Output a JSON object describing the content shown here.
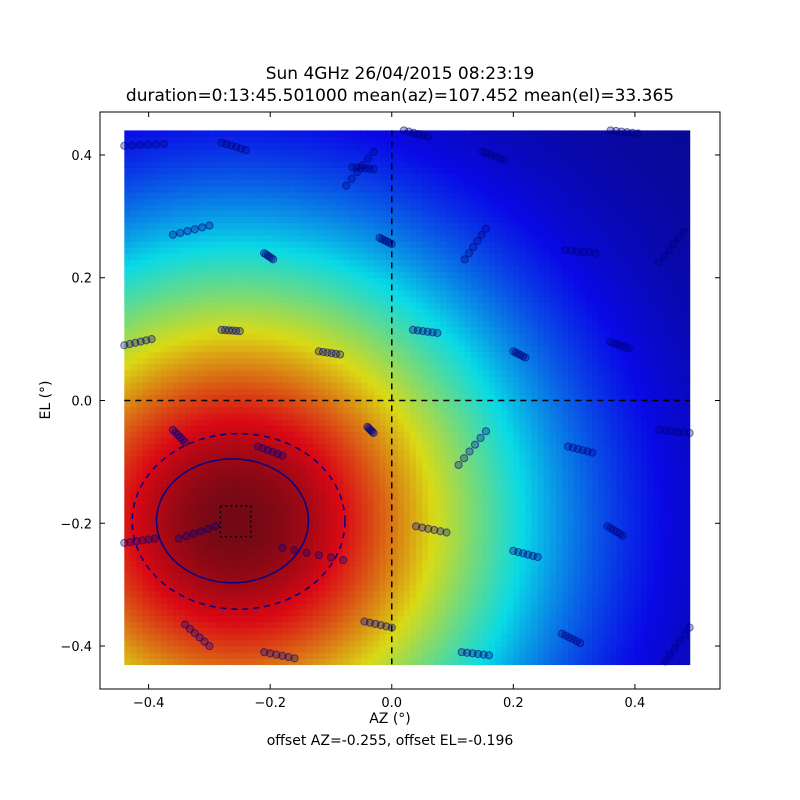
{
  "title_line_1": "Sun 4GHz 26/04/2015 08:23:19",
  "title_line_2": "duration=0:13:45.501000 mean(az)=107.452 mean(el)=33.365",
  "xlabel": "AZ (°)",
  "ylabel": "EL (°)",
  "footer": "offset AZ=-0.255, offset EL=-0.196",
  "chart_data": {
    "type": "heatmap",
    "title": "Sun 4GHz 26/04/2015 08:23:19",
    "subtitle": "duration=0:13:45.501000 mean(az)=107.452 mean(el)=33.365",
    "xlabel": "AZ (°)",
    "ylabel": "EL (°)",
    "xlim": [
      -0.48,
      0.54
    ],
    "ylim": [
      -0.47,
      0.47
    ],
    "heatmap_extent": {
      "x": [
        -0.44,
        0.49
      ],
      "y": [
        -0.43,
        0.44
      ]
    },
    "x_ticks": [
      -0.4,
      -0.2,
      0.0,
      0.2,
      0.4
    ],
    "y_ticks": [
      -0.4,
      -0.2,
      0.0,
      0.2,
      0.4
    ],
    "x_tick_labels": [
      "−0.4",
      "−0.2",
      "0.0",
      "0.2",
      "0.4"
    ],
    "y_tick_labels": [
      "−0.4",
      "−0.2",
      "0.0",
      "0.2",
      "0.4"
    ],
    "colormap": "jet",
    "peak": {
      "az": -0.255,
      "el": -0.196
    },
    "reference_lines": {
      "az": 0.0,
      "el": 0.0
    },
    "contours": [
      {
        "style": "solid",
        "center": [
          -0.262,
          -0.196
        ],
        "radius": [
          0.125,
          0.101
        ]
      },
      {
        "style": "dashed",
        "center": [
          -0.252,
          -0.197
        ],
        "radius": [
          0.175,
          0.143
        ]
      }
    ],
    "peak_box": {
      "az": [
        -0.282,
        -0.232
      ],
      "el": [
        -0.222,
        -0.172
      ]
    },
    "scan_segments": [
      {
        "az": [
          -0.44,
          -0.375
        ],
        "el": [
          0.415,
          0.418
        ]
      },
      {
        "az": [
          -0.28,
          -0.24
        ],
        "el": [
          0.42,
          0.408
        ]
      },
      {
        "az": [
          -0.065,
          -0.03
        ],
        "el": [
          0.38,
          0.377
        ]
      },
      {
        "az": [
          0.02,
          0.06
        ],
        "el": [
          0.44,
          0.43
        ]
      },
      {
        "az": [
          0.15,
          0.185
        ],
        "el": [
          0.405,
          0.392
        ]
      },
      {
        "az": [
          0.36,
          0.405
        ],
        "el": [
          0.44,
          0.435
        ]
      },
      {
        "az": [
          -0.02,
          0.0
        ],
        "el": [
          0.265,
          0.255
        ]
      },
      {
        "az": [
          -0.075,
          -0.03
        ],
        "el": [
          0.35,
          0.405
        ]
      },
      {
        "az": [
          -0.36,
          -0.3
        ],
        "el": [
          0.27,
          0.285
        ]
      },
      {
        "az": [
          -0.21,
          -0.195
        ],
        "el": [
          0.24,
          0.23
        ]
      },
      {
        "az": [
          0.12,
          0.155
        ],
        "el": [
          0.23,
          0.28
        ]
      },
      {
        "az": [
          0.285,
          0.335
        ],
        "el": [
          0.245,
          0.24
        ]
      },
      {
        "az": [
          0.44,
          0.48
        ],
        "el": [
          0.225,
          0.275
        ]
      },
      {
        "az": [
          -0.44,
          -0.395
        ],
        "el": [
          0.09,
          0.1
        ]
      },
      {
        "az": [
          -0.28,
          -0.25
        ],
        "el": [
          0.115,
          0.113
        ]
      },
      {
        "az": [
          -0.12,
          -0.085
        ],
        "el": [
          0.08,
          0.075
        ]
      },
      {
        "az": [
          0.035,
          0.075
        ],
        "el": [
          0.115,
          0.11
        ]
      },
      {
        "az": [
          0.2,
          0.22
        ],
        "el": [
          0.08,
          0.07
        ]
      },
      {
        "az": [
          0.36,
          0.39
        ],
        "el": [
          0.095,
          0.085
        ]
      },
      {
        "az": [
          -0.35,
          -0.29
        ],
        "el": [
          -0.225,
          -0.205
        ]
      },
      {
        "az": [
          -0.36,
          -0.34
        ],
        "el": [
          -0.048,
          -0.068
        ]
      },
      {
        "az": [
          -0.22,
          -0.18
        ],
        "el": [
          -0.075,
          -0.09
        ]
      },
      {
        "az": [
          -0.04,
          -0.03
        ],
        "el": [
          -0.043,
          -0.053
        ]
      },
      {
        "az": [
          0.11,
          0.155
        ],
        "el": [
          -0.105,
          -0.05
        ]
      },
      {
        "az": [
          0.29,
          0.33
        ],
        "el": [
          -0.075,
          -0.085
        ]
      },
      {
        "az": [
          0.44,
          0.49
        ],
        "el": [
          -0.048,
          -0.053
        ]
      },
      {
        "az": [
          -0.44,
          -0.39
        ],
        "el": [
          -0.232,
          -0.225
        ]
      },
      {
        "az": [
          -0.18,
          -0.08
        ],
        "el": [
          -0.24,
          -0.26
        ]
      },
      {
        "az": [
          0.04,
          0.09
        ],
        "el": [
          -0.205,
          -0.215
        ]
      },
      {
        "az": [
          0.2,
          0.24
        ],
        "el": [
          -0.245,
          -0.255
        ]
      },
      {
        "az": [
          0.355,
          0.38
        ],
        "el": [
          -0.205,
          -0.22
        ]
      },
      {
        "az": [
          -0.34,
          -0.3
        ],
        "el": [
          -0.365,
          -0.4
        ]
      },
      {
        "az": [
          -0.21,
          -0.16
        ],
        "el": [
          -0.41,
          -0.42
        ]
      },
      {
        "az": [
          -0.045,
          0.0
        ],
        "el": [
          -0.36,
          -0.37
        ]
      },
      {
        "az": [
          0.115,
          0.16
        ],
        "el": [
          -0.41,
          -0.415
        ]
      },
      {
        "az": [
          0.28,
          0.31
        ],
        "el": [
          -0.38,
          -0.395
        ]
      },
      {
        "az": [
          0.45,
          0.49
        ],
        "el": [
          -0.425,
          -0.37
        ]
      }
    ]
  },
  "colors": {
    "contour": "#00008b",
    "reference_line": "#000000",
    "marker_fill": "#000080",
    "axes": "#000000"
  }
}
